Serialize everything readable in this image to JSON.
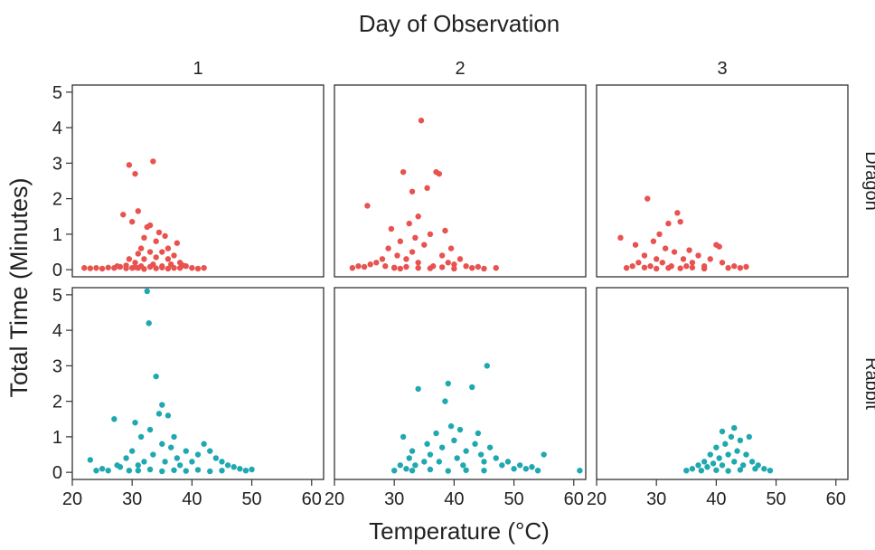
{
  "chart_data": {
    "type": "scatter",
    "title": "Day of Observation",
    "xlabel": "Temperature (°C)",
    "ylabel": "Total Time (Minutes)",
    "facet_columns": [
      "1",
      "2",
      "3"
    ],
    "facet_rows": [
      "Dragon",
      "Rabbit"
    ],
    "xlim": [
      20,
      62
    ],
    "ylim": [
      -0.2,
      5.2
    ],
    "x_ticks": [
      "20",
      "30",
      "40",
      "50",
      "60"
    ],
    "y_ticks": [
      "0",
      "1",
      "2",
      "3",
      "4",
      "5"
    ],
    "colors": {
      "Dragon": "#e8524f",
      "Rabbit": "#1fa8b0"
    },
    "panels": [
      {
        "day": "1",
        "group": "Dragon",
        "points": [
          [
            22,
            0.05
          ],
          [
            23,
            0.04
          ],
          [
            24,
            0.05
          ],
          [
            25,
            0.03
          ],
          [
            26,
            0.06
          ],
          [
            27,
            0.05
          ],
          [
            27.5,
            0.1
          ],
          [
            28,
            0.08
          ],
          [
            28.5,
            1.55
          ],
          [
            29,
            0.12
          ],
          [
            29.5,
            0.3
          ],
          [
            29.5,
            2.95
          ],
          [
            30,
            1.35
          ],
          [
            30,
            0.05
          ],
          [
            30.5,
            2.7
          ],
          [
            30.5,
            0.2
          ],
          [
            31,
            0.45
          ],
          [
            31,
            1.65
          ],
          [
            31.5,
            0.6
          ],
          [
            31.5,
            0.1
          ],
          [
            32,
            0.9
          ],
          [
            32,
            0.3
          ],
          [
            32.5,
            1.2
          ],
          [
            33,
            1.25
          ],
          [
            33,
            0.5
          ],
          [
            33.5,
            3.05
          ],
          [
            33.5,
            0.15
          ],
          [
            34,
            0.8
          ],
          [
            34,
            0.35
          ],
          [
            34.5,
            1.05
          ],
          [
            35,
            0.5
          ],
          [
            35,
            0.1
          ],
          [
            35.5,
            0.95
          ],
          [
            36,
            0.3
          ],
          [
            36,
            0.6
          ],
          [
            36.5,
            0.15
          ],
          [
            37,
            0.4
          ],
          [
            37.5,
            0.75
          ],
          [
            38,
            0.2
          ],
          [
            38,
            0.05
          ],
          [
            39,
            0.1
          ],
          [
            40,
            0.05
          ],
          [
            41,
            0.03
          ],
          [
            42,
            0.05
          ],
          [
            31,
            0.05
          ],
          [
            32,
            0.02
          ],
          [
            33,
            0.08
          ],
          [
            34,
            0.04
          ],
          [
            35,
            0.06
          ],
          [
            36,
            0.03
          ],
          [
            37,
            0.05
          ],
          [
            38.5,
            0.12
          ],
          [
            29,
            0.04
          ],
          [
            30.5,
            0.07
          ]
        ]
      },
      {
        "day": "2",
        "group": "Dragon",
        "points": [
          [
            23,
            0.05
          ],
          [
            24,
            0.1
          ],
          [
            25,
            0.08
          ],
          [
            25.5,
            1.8
          ],
          [
            26,
            0.15
          ],
          [
            27,
            0.2
          ],
          [
            28,
            0.3
          ],
          [
            28.5,
            0.1
          ],
          [
            29,
            0.6
          ],
          [
            29.5,
            1.15
          ],
          [
            30,
            0.05
          ],
          [
            30.5,
            0.4
          ],
          [
            31,
            0.8
          ],
          [
            31.5,
            2.75
          ],
          [
            32,
            0.3
          ],
          [
            32.5,
            1.3
          ],
          [
            33,
            0.5
          ],
          [
            33,
            2.2
          ],
          [
            33.5,
            0.9
          ],
          [
            34,
            1.5
          ],
          [
            34,
            0.2
          ],
          [
            34.5,
            4.2
          ],
          [
            35,
            0.7
          ],
          [
            35.5,
            2.3
          ],
          [
            36,
            1.0
          ],
          [
            36.5,
            0.1
          ],
          [
            37,
            2.75
          ],
          [
            37.5,
            2.7
          ],
          [
            38,
            0.4
          ],
          [
            38.5,
            1.1
          ],
          [
            39,
            0.2
          ],
          [
            39.5,
            0.6
          ],
          [
            40,
            0.15
          ],
          [
            41,
            0.3
          ],
          [
            42,
            0.1
          ],
          [
            43,
            0.05
          ],
          [
            44,
            0.08
          ],
          [
            45,
            0.03
          ],
          [
            47,
            0.05
          ],
          [
            30,
            0.06
          ],
          [
            31,
            0.03
          ],
          [
            32,
            0.08
          ],
          [
            34,
            0.05
          ],
          [
            36,
            0.04
          ],
          [
            38,
            0.07
          ],
          [
            40,
            0.03
          ]
        ]
      },
      {
        "day": "3",
        "group": "Dragon",
        "points": [
          [
            24,
            0.9
          ],
          [
            25,
            0.05
          ],
          [
            26,
            0.1
          ],
          [
            26.5,
            0.7
          ],
          [
            27,
            0.2
          ],
          [
            28,
            0.4
          ],
          [
            28.5,
            2.0
          ],
          [
            29,
            0.1
          ],
          [
            29.5,
            0.8
          ],
          [
            30,
            0.3
          ],
          [
            30.5,
            1.0
          ],
          [
            31,
            0.2
          ],
          [
            31.5,
            0.6
          ],
          [
            32,
            1.3
          ],
          [
            32.5,
            0.1
          ],
          [
            33,
            0.5
          ],
          [
            33.5,
            1.6
          ],
          [
            34,
            1.35
          ],
          [
            34.5,
            0.3
          ],
          [
            35,
            0.1
          ],
          [
            35.5,
            0.55
          ],
          [
            36,
            0.2
          ],
          [
            37,
            0.4
          ],
          [
            38,
            0.1
          ],
          [
            39,
            0.3
          ],
          [
            40,
            0.7
          ],
          [
            40.5,
            0.65
          ],
          [
            41,
            0.2
          ],
          [
            42,
            0.05
          ],
          [
            43,
            0.1
          ],
          [
            44,
            0.05
          ],
          [
            45,
            0.08
          ],
          [
            28,
            0.06
          ],
          [
            30,
            0.03
          ],
          [
            32,
            0.05
          ],
          [
            34,
            0.04
          ],
          [
            36,
            0.06
          ],
          [
            38,
            0.03
          ]
        ]
      },
      {
        "day": "1",
        "group": "Rabbit",
        "points": [
          [
            23,
            0.35
          ],
          [
            24,
            0.05
          ],
          [
            25,
            0.1
          ],
          [
            26,
            0.05
          ],
          [
            27,
            1.5
          ],
          [
            27.5,
            0.2
          ],
          [
            28,
            0.15
          ],
          [
            29,
            0.4
          ],
          [
            29.5,
            0.05
          ],
          [
            30,
            0.6
          ],
          [
            30.5,
            1.4
          ],
          [
            31,
            0.2
          ],
          [
            31.5,
            1.0
          ],
          [
            32,
            0.3
          ],
          [
            32.5,
            5.1
          ],
          [
            32.8,
            4.2
          ],
          [
            33,
            1.2
          ],
          [
            33.5,
            0.5
          ],
          [
            34,
            2.7
          ],
          [
            34.5,
            1.65
          ],
          [
            35,
            1.9
          ],
          [
            35,
            0.8
          ],
          [
            35.5,
            0.3
          ],
          [
            36,
            1.6
          ],
          [
            36.5,
            0.7
          ],
          [
            37,
            1.0
          ],
          [
            37.5,
            0.4
          ],
          [
            38,
            0.2
          ],
          [
            39,
            0.6
          ],
          [
            40,
            0.3
          ],
          [
            41,
            0.5
          ],
          [
            42,
            0.8
          ],
          [
            43,
            0.6
          ],
          [
            44,
            0.4
          ],
          [
            45,
            0.3
          ],
          [
            46,
            0.2
          ],
          [
            47,
            0.15
          ],
          [
            48,
            0.1
          ],
          [
            49,
            0.05
          ],
          [
            50,
            0.08
          ],
          [
            31,
            0.05
          ],
          [
            33,
            0.08
          ],
          [
            35,
            0.03
          ],
          [
            37,
            0.06
          ],
          [
            39,
            0.04
          ],
          [
            41,
            0.07
          ],
          [
            43,
            0.03
          ],
          [
            45,
            0.05
          ]
        ]
      },
      {
        "day": "2",
        "group": "Rabbit",
        "points": [
          [
            30,
            0.05
          ],
          [
            31,
            0.2
          ],
          [
            31.5,
            1.0
          ],
          [
            32,
            0.1
          ],
          [
            32.5,
            0.4
          ],
          [
            33,
            0.6
          ],
          [
            33.5,
            0.2
          ],
          [
            34,
            2.35
          ],
          [
            35,
            0.3
          ],
          [
            35.5,
            0.8
          ],
          [
            36,
            0.5
          ],
          [
            37,
            1.1
          ],
          [
            37.5,
            0.3
          ],
          [
            38,
            0.7
          ],
          [
            38.5,
            2.0
          ],
          [
            39,
            2.5
          ],
          [
            39.5,
            1.3
          ],
          [
            40,
            0.9
          ],
          [
            40.5,
            0.4
          ],
          [
            41,
            1.2
          ],
          [
            41.5,
            0.2
          ],
          [
            42,
            0.6
          ],
          [
            43,
            2.4
          ],
          [
            43.5,
            0.8
          ],
          [
            44,
            1.1
          ],
          [
            44.5,
            0.5
          ],
          [
            45,
            0.3
          ],
          [
            45.5,
            3.0
          ],
          [
            46,
            0.7
          ],
          [
            47,
            0.4
          ],
          [
            48,
            0.2
          ],
          [
            49,
            0.3
          ],
          [
            50,
            0.1
          ],
          [
            51,
            0.2
          ],
          [
            52,
            0.1
          ],
          [
            53,
            0.15
          ],
          [
            54,
            0.05
          ],
          [
            55,
            0.5
          ],
          [
            61,
            0.05
          ],
          [
            33,
            0.05
          ],
          [
            36,
            0.08
          ],
          [
            39,
            0.04
          ],
          [
            42,
            0.06
          ],
          [
            45,
            0.05
          ]
        ]
      },
      {
        "day": "3",
        "group": "Rabbit",
        "points": [
          [
            35,
            0.05
          ],
          [
            36,
            0.1
          ],
          [
            37,
            0.2
          ],
          [
            37.5,
            0.05
          ],
          [
            38,
            0.3
          ],
          [
            38.5,
            0.15
          ],
          [
            39,
            0.5
          ],
          [
            39.5,
            0.25
          ],
          [
            40,
            0.7
          ],
          [
            40.5,
            0.4
          ],
          [
            41,
            1.15
          ],
          [
            41,
            0.2
          ],
          [
            41.5,
            0.8
          ],
          [
            42,
            0.5
          ],
          [
            42.5,
            1.0
          ],
          [
            43,
            1.25
          ],
          [
            43,
            0.3
          ],
          [
            43.5,
            0.6
          ],
          [
            44,
            0.9
          ],
          [
            44.5,
            0.2
          ],
          [
            45,
            0.5
          ],
          [
            45.5,
            1.0
          ],
          [
            46,
            0.3
          ],
          [
            46.5,
            0.1
          ],
          [
            47,
            0.2
          ],
          [
            48,
            0.1
          ],
          [
            49,
            0.05
          ],
          [
            40,
            0.06
          ],
          [
            42,
            0.04
          ],
          [
            44,
            0.07
          ]
        ]
      }
    ]
  }
}
